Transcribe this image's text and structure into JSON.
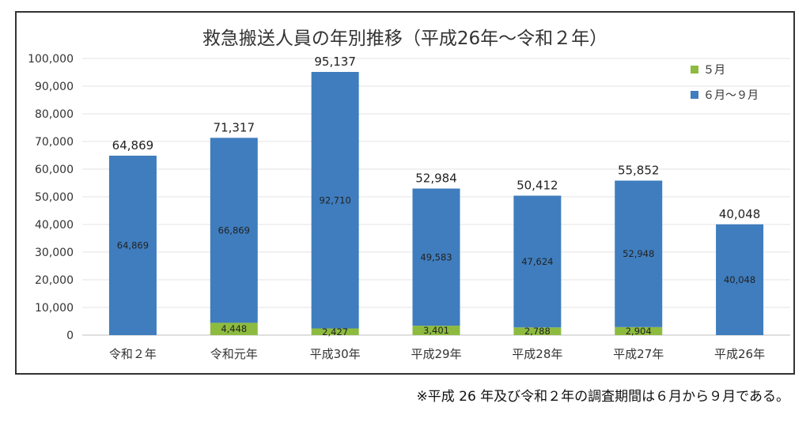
{
  "chart_data": {
    "type": "bar",
    "stacked": true,
    "title": "救急搬送人員の年別推移（平成26年～令和２年）",
    "categories": [
      "令和２年",
      "令和元年",
      "平成30年",
      "平成29年",
      "平成28年",
      "平成27年",
      "平成26年"
    ],
    "series": [
      {
        "name": "５月",
        "color": "#8dbb3f",
        "values": [
          0,
          4448,
          2427,
          3401,
          2788,
          2904,
          0
        ],
        "labels": [
          "",
          "4,448",
          "2,427",
          "3,401",
          "2,788",
          "2,904",
          ""
        ]
      },
      {
        "name": "６月～９月",
        "color": "#3f7dbe",
        "values": [
          64869,
          66869,
          92710,
          49583,
          47624,
          52948,
          40048
        ],
        "labels": [
          "64,869",
          "66,869",
          "92,710",
          "49,583",
          "47,624",
          "52,948",
          "40,048"
        ]
      }
    ],
    "totals": [
      64869,
      71317,
      95137,
      52984,
      50412,
      55852,
      40048
    ],
    "total_labels": [
      "64,869",
      "71,317",
      "95,137",
      "52,984",
      "50,412",
      "55,852",
      "40,048"
    ],
    "ylim": [
      0,
      100000
    ],
    "yticks": [
      0,
      10000,
      20000,
      30000,
      40000,
      50000,
      60000,
      70000,
      80000,
      90000,
      100000
    ],
    "ytick_labels": [
      "0",
      "10,000",
      "20,000",
      "30,000",
      "40,000",
      "50,000",
      "60,000",
      "70,000",
      "80,000",
      "90,000",
      "100,000"
    ],
    "grid": true,
    "legend_position": "top-right"
  },
  "footnote": "※平成 26 年及び令和２年の調査期間は６月から９月である。"
}
